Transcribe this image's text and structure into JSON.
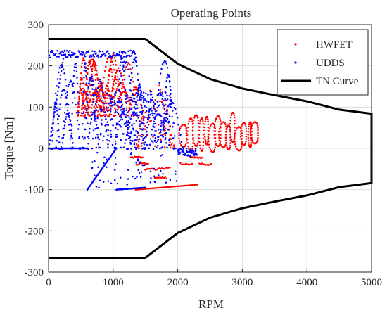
{
  "chart_data": {
    "type": "scatter",
    "title": "Operating Points",
    "xlabel": "RPM",
    "ylabel": "Torque [Nm]",
    "xlim": [
      0,
      5000
    ],
    "ylim": [
      -300,
      300
    ],
    "xticks": [
      0,
      1000,
      2000,
      3000,
      4000,
      5000
    ],
    "yticks": [
      -300,
      -200,
      -100,
      0,
      100,
      200,
      300
    ],
    "grid": true,
    "legend_position": "top-right",
    "series": [
      {
        "name": "HWFET",
        "kind": "scatter",
        "color": "#ff0000",
        "marker": "dot",
        "clusters": [
          {
            "x": [
              2050,
              3250
            ],
            "y": [
              -10,
              95
            ],
            "shape": "loops"
          },
          {
            "x": [
              1350,
              1950
            ],
            "y": [
              0,
              170
            ],
            "shape": "band"
          },
          {
            "x": [
              450,
              1350
            ],
            "y": [
              80,
              232
            ],
            "shape": "arcs"
          },
          {
            "x": [
              1350,
              2300
            ],
            "y": [
              -100,
              -88
            ],
            "shape": "line"
          },
          {
            "x": [
              1000,
              3000
            ],
            "y": [
              -75,
              -20
            ],
            "shape": "steps"
          }
        ]
      },
      {
        "name": "UDDS",
        "kind": "scatter",
        "color": "#0000ff",
        "marker": "dot",
        "clusters": [
          {
            "x": [
              0,
              1350
            ],
            "y": [
              220,
              237
            ],
            "shape": "plateau"
          },
          {
            "x": [
              50,
              1900
            ],
            "y": [
              0,
              235
            ],
            "shape": "arcs"
          },
          {
            "x": [
              800,
              1900
            ],
            "y": [
              0,
              140
            ],
            "shape": "dense"
          },
          {
            "x": [
              0,
              600
            ],
            "y": [
              0,
              0
            ],
            "shape": "line"
          },
          {
            "x": [
              600,
              1050
            ],
            "y": [
              -100,
              0
            ],
            "shape": "line"
          },
          {
            "x": [
              1050,
              1500
            ],
            "y": [
              -100,
              -95
            ],
            "shape": "line"
          },
          {
            "x": [
              650,
              2000
            ],
            "y": [
              -95,
              -10
            ],
            "shape": "scatter"
          },
          {
            "x": [
              2000,
              2300
            ],
            "y": [
              -20,
              0
            ],
            "shape": "scatter"
          }
        ]
      },
      {
        "name": "TN Curve",
        "kind": "line",
        "color": "#000000",
        "x": [
          0,
          1500,
          2000,
          2500,
          3000,
          3500,
          4000,
          4500,
          5000,
          5000,
          4500,
          4000,
          3500,
          3000,
          2500,
          2000,
          1500,
          0
        ],
        "y": [
          265,
          265,
          205,
          168,
          145,
          129,
          114,
          94,
          84,
          -84,
          -94,
          -114,
          -129,
          -145,
          -168,
          -205,
          -265,
          -265
        ]
      }
    ]
  }
}
